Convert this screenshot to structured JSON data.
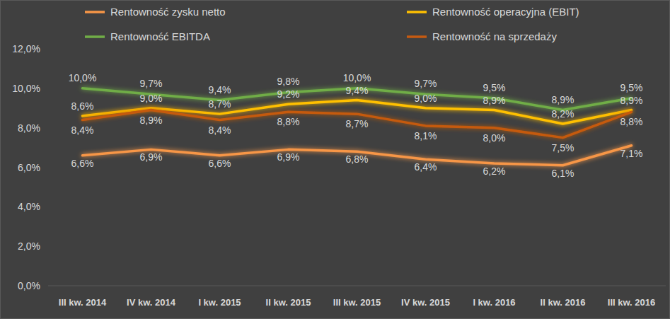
{
  "chart_data": {
    "type": "line",
    "categories": [
      "III kw. 2014",
      "IV kw. 2014",
      "I kw. 2015",
      "II kw. 2015",
      "III kw. 2015",
      "IV kw. 2015",
      "I kw. 2016",
      "II kw. 2016",
      "III kw. 2016"
    ],
    "series": [
      {
        "name": "Rentowność zysku netto",
        "color": "#F79646",
        "values": [
          6.6,
          6.9,
          6.6,
          6.9,
          6.8,
          6.4,
          6.2,
          6.1,
          7.1
        ],
        "value_labels": [
          "6,6%",
          "6,9%",
          "6,6%",
          "6,9%",
          "6,8%",
          "6,4%",
          "6,2%",
          "6,1%",
          "7,1%"
        ]
      },
      {
        "name": "Rentowność operacyjna (EBIT)",
        "color": "#FFC000",
        "values": [
          8.6,
          9.0,
          8.7,
          9.2,
          9.4,
          9.0,
          8.9,
          8.2,
          8.9
        ],
        "value_labels": [
          "8,6%",
          "9,0%",
          "8,7%",
          "9,2%",
          "9,4%",
          "9,0%",
          "8,9%",
          "8,2%",
          "8,9%"
        ]
      },
      {
        "name": "Rentowność EBITDA",
        "color": "#70AD47",
        "values": [
          10.0,
          9.7,
          9.4,
          9.8,
          10.0,
          9.7,
          9.5,
          8.9,
          9.5
        ],
        "value_labels": [
          "10,0%",
          "9,7%",
          "9,4%",
          "9,8%",
          "10,0%",
          "9,7%",
          "9,5%",
          "8,9%",
          "9,5%"
        ]
      },
      {
        "name": "Rentowność na sprzedaży",
        "color": "#C55A11",
        "values": [
          8.4,
          8.9,
          8.4,
          8.8,
          8.7,
          8.1,
          8.0,
          7.5,
          8.8
        ],
        "value_labels": [
          "8,4%",
          "8,9%",
          "8,4%",
          "8,8%",
          "8,7%",
          "8,1%",
          "8,0%",
          "7,5%",
          "8,8%"
        ]
      }
    ],
    "ylim": [
      0,
      12
    ],
    "yticks": [
      {
        "value": 0,
        "label": "0,0%"
      },
      {
        "value": 2,
        "label": "2,0%"
      },
      {
        "value": 4,
        "label": "4,0%"
      },
      {
        "value": 6,
        "label": "6,0%"
      },
      {
        "value": 8,
        "label": "8,0%"
      },
      {
        "value": 10,
        "label": "10,0%"
      },
      {
        "value": 12,
        "label": "12,0%"
      }
    ],
    "grid": false,
    "legend": "top",
    "data_labels": true
  }
}
